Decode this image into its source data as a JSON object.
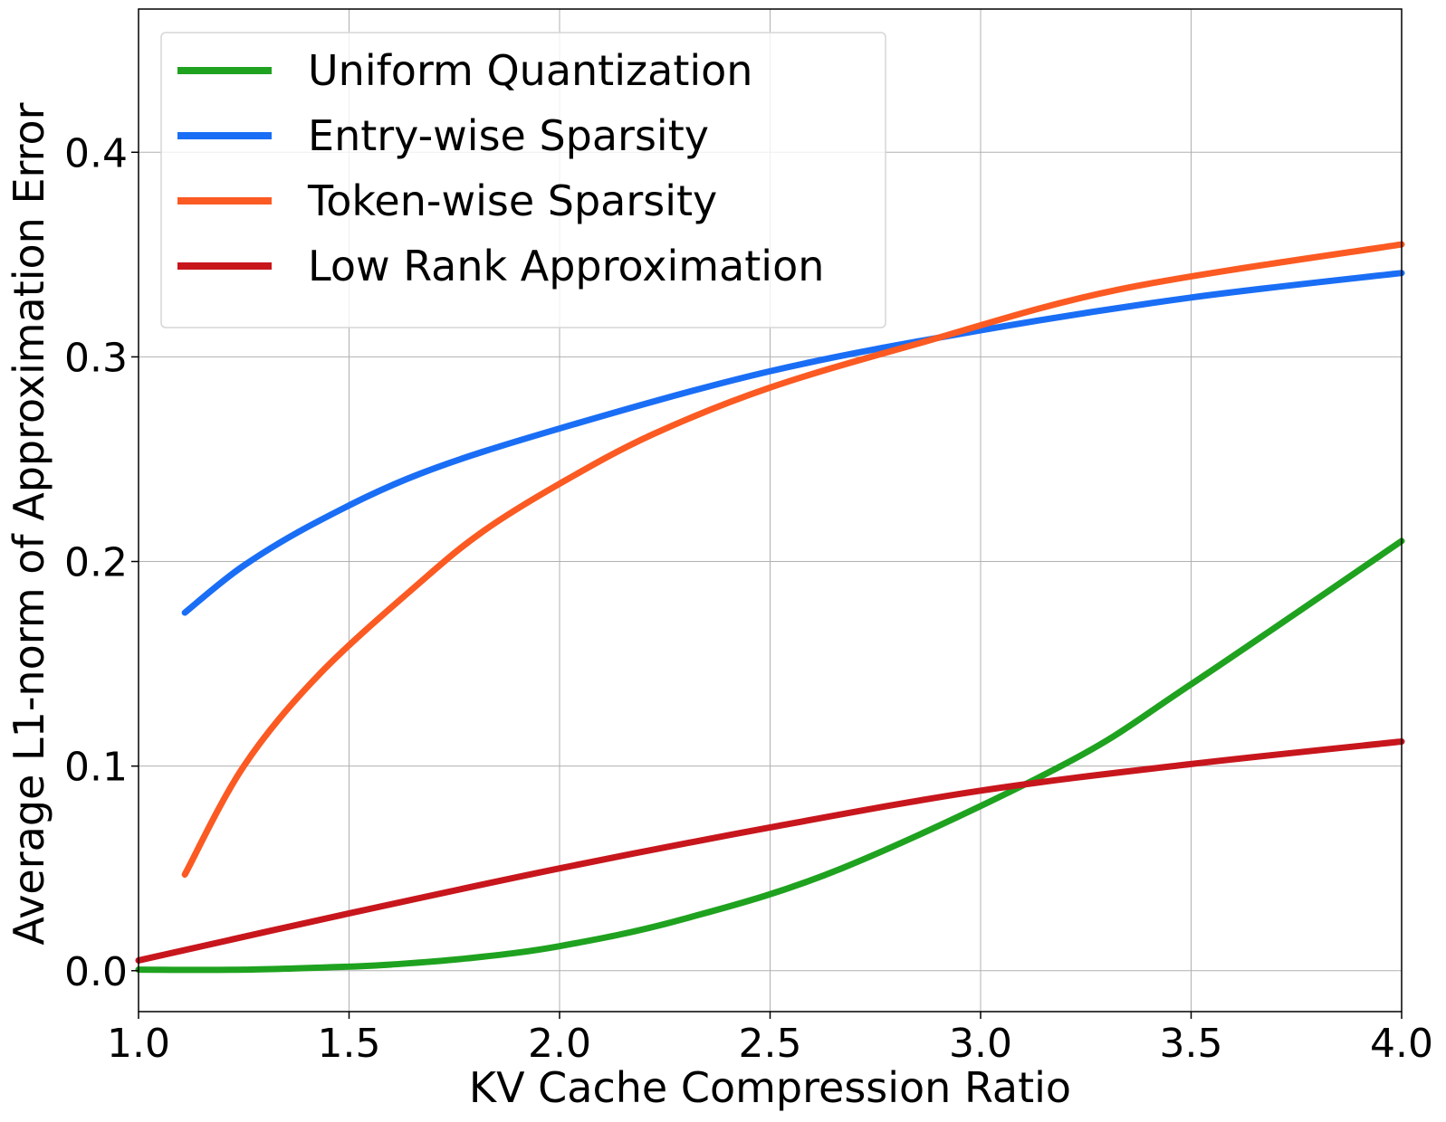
{
  "chart_data": {
    "type": "line",
    "title": "",
    "xlabel": "KV Cache Compression Ratio",
    "ylabel": "Average L1-norm  of Approximation Error",
    "xlim": [
      1.0,
      4.0
    ],
    "ylim": [
      -0.02,
      0.47
    ],
    "xticks": [
      1.0,
      1.5,
      2.0,
      2.5,
      3.0,
      3.5,
      4.0
    ],
    "xtick_labels": [
      "1.0",
      "1.5",
      "2.0",
      "2.5",
      "3.0",
      "3.5",
      "4.0"
    ],
    "yticks": [
      0.0,
      0.1,
      0.2,
      0.3,
      0.4
    ],
    "ytick_labels": [
      "0.0",
      "0.1",
      "0.2",
      "0.3",
      "0.4"
    ],
    "grid": true,
    "legend_position": "upper-left",
    "series": [
      {
        "name": "Uniform Quantization",
        "color": "#1fa21f",
        "x": [
          1.0,
          1.25,
          1.5,
          1.6,
          1.78,
          2.0,
          2.29,
          2.67,
          3.2,
          3.5,
          4.0
        ],
        "y": [
          0.0005,
          0.0005,
          0.002,
          0.003,
          0.006,
          0.012,
          0.025,
          0.05,
          0.101,
          0.14,
          0.21
        ]
      },
      {
        "name": "Entry-wise Sparsity",
        "color": "#1a6ef5",
        "x": [
          1.11,
          1.25,
          1.43,
          1.67,
          2.0,
          2.5,
          3.0,
          3.5,
          4.0
        ],
        "y": [
          0.175,
          0.198,
          0.22,
          0.243,
          0.265,
          0.293,
          0.313,
          0.329,
          0.341
        ]
      },
      {
        "name": "Token-wise Sparsity",
        "color": "#fb5a22",
        "x": [
          1.11,
          1.25,
          1.43,
          1.67,
          1.82,
          2.0,
          2.22,
          2.5,
          2.86,
          3.33,
          4.0
        ],
        "y": [
          0.047,
          0.1,
          0.145,
          0.19,
          0.215,
          0.238,
          0.262,
          0.285,
          0.307,
          0.333,
          0.355
        ]
      },
      {
        "name": "Low Rank Approximation",
        "color": "#c8161d",
        "x": [
          1.0,
          1.5,
          2.0,
          2.5,
          3.0,
          3.5,
          4.0
        ],
        "y": [
          0.005,
          0.028,
          0.05,
          0.07,
          0.088,
          0.101,
          0.112
        ]
      }
    ]
  }
}
